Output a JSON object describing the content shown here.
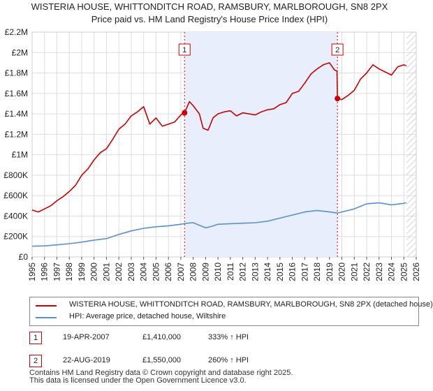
{
  "chart_data": {
    "type": "line",
    "title": "WISTERIA HOUSE, WHITTONDITCH ROAD, RAMSBURY, MARLBOROUGH, SN8 2PX",
    "subtitle": "Price paid vs. HM Land Registry's House Price Index (HPI)",
    "xlim": [
      1995,
      2026
    ],
    "ylim": [
      0,
      2200000
    ],
    "x_ticks": [
      "1995",
      "1996",
      "1997",
      "1998",
      "1999",
      "2000",
      "2001",
      "2002",
      "2003",
      "2004",
      "2005",
      "2006",
      "2007",
      "2008",
      "2009",
      "2010",
      "2011",
      "2012",
      "2013",
      "2014",
      "2015",
      "2016",
      "2017",
      "2018",
      "2019",
      "2020",
      "2021",
      "2022",
      "2023",
      "2024",
      "2025",
      "2026"
    ],
    "y_ticks": [
      {
        "value": 0,
        "label": "£0"
      },
      {
        "value": 200000,
        "label": "£200K"
      },
      {
        "value": 400000,
        "label": "£400K"
      },
      {
        "value": 600000,
        "label": "£600K"
      },
      {
        "value": 800000,
        "label": "£800K"
      },
      {
        "value": 1000000,
        "label": "£1M"
      },
      {
        "value": 1200000,
        "label": "£1.2M"
      },
      {
        "value": 1400000,
        "label": "£1.4M"
      },
      {
        "value": 1600000,
        "label": "£1.6M"
      },
      {
        "value": 1800000,
        "label": "£1.8M"
      },
      {
        "value": 2000000,
        "label": "£2M"
      },
      {
        "value": 2200000,
        "label": "£2.2M"
      }
    ],
    "grid": true,
    "shaded_period": [
      2007.3,
      2019.64
    ],
    "future_hatch_from": 2025.2,
    "series": [
      {
        "name": "WISTERIA HOUSE, WHITTONDITCH ROAD, RAMSBURY, MARLBOROUGH, SN8 2PX (detached house)",
        "color": "#cc0000",
        "x": [
          1995.0,
          1995.5,
          1996.0,
          1996.5,
          1997.0,
          1997.5,
          1998.0,
          1998.5,
          1999.0,
          1999.5,
          2000.0,
          2000.5,
          2001.0,
          2001.5,
          2002.0,
          2002.5,
          2003.0,
          2003.5,
          2004.0,
          2004.5,
          2005.0,
          2005.5,
          2006.0,
          2006.5,
          2007.0,
          2007.3,
          2007.7,
          2008.0,
          2008.5,
          2008.8,
          2009.2,
          2009.6,
          2010.0,
          2010.5,
          2011.0,
          2011.5,
          2012.0,
          2012.5,
          2013.0,
          2013.5,
          2014.0,
          2014.5,
          2015.0,
          2015.5,
          2016.0,
          2016.5,
          2017.0,
          2017.5,
          2018.0,
          2018.5,
          2019.0,
          2019.4,
          2019.6,
          2019.64,
          2020.0,
          2020.5,
          2021.0,
          2021.5,
          2022.0,
          2022.5,
          2023.0,
          2023.5,
          2024.0,
          2024.5,
          2025.0,
          2025.2
        ],
        "values": [
          460000,
          440000,
          470000,
          500000,
          550000,
          590000,
          640000,
          700000,
          800000,
          860000,
          950000,
          1020000,
          1060000,
          1150000,
          1250000,
          1300000,
          1380000,
          1420000,
          1470000,
          1300000,
          1360000,
          1280000,
          1300000,
          1320000,
          1390000,
          1410000,
          1520000,
          1480000,
          1400000,
          1260000,
          1240000,
          1360000,
          1400000,
          1420000,
          1430000,
          1380000,
          1410000,
          1400000,
          1390000,
          1420000,
          1440000,
          1450000,
          1490000,
          1510000,
          1600000,
          1620000,
          1700000,
          1790000,
          1840000,
          1880000,
          1900000,
          1830000,
          1820000,
          1550000,
          1540000,
          1580000,
          1630000,
          1740000,
          1800000,
          1880000,
          1840000,
          1810000,
          1780000,
          1860000,
          1880000,
          1870000
        ]
      },
      {
        "name": "HPI: Average price, detached house, Wiltshire",
        "color": "#5b8fd1",
        "x": [
          1995.0,
          1996.0,
          1997.0,
          1998.0,
          1999.0,
          2000.0,
          2001.0,
          2002.0,
          2003.0,
          2004.0,
          2005.0,
          2006.0,
          2007.0,
          2007.5,
          2008.0,
          2008.5,
          2009.0,
          2009.5,
          2010.0,
          2011.0,
          2012.0,
          2013.0,
          2014.0,
          2015.0,
          2016.0,
          2017.0,
          2018.0,
          2019.0,
          2019.64,
          2020.0,
          2021.0,
          2022.0,
          2023.0,
          2024.0,
          2025.0,
          2025.2
        ],
        "values": [
          105000,
          108000,
          118000,
          130000,
          145000,
          165000,
          180000,
          220000,
          255000,
          280000,
          295000,
          305000,
          320000,
          330000,
          335000,
          310000,
          285000,
          300000,
          320000,
          325000,
          330000,
          335000,
          350000,
          380000,
          410000,
          440000,
          455000,
          440000,
          430000,
          440000,
          470000,
          520000,
          530000,
          510000,
          525000,
          530000
        ]
      }
    ],
    "sale_markers": [
      {
        "label": "1",
        "x": 2007.3,
        "value": 1410000
      },
      {
        "label": "2",
        "x": 2019.64,
        "value": 1550000
      }
    ]
  },
  "legend": {
    "property_label": "WISTERIA HOUSE, WHITTONDITCH ROAD, RAMSBURY, MARLBOROUGH, SN8 2PX (detached house)",
    "hpi_label": "HPI: Average price, detached house, Wiltshire",
    "property_color": "#cc0000",
    "hpi_color": "#5b8fd1"
  },
  "sales": [
    {
      "num": "1",
      "date": "19-APR-2007",
      "price": "£1,410,000",
      "hpi": "333% ↑ HPI"
    },
    {
      "num": "2",
      "date": "22-AUG-2019",
      "price": "£1,550,000",
      "hpi": "260% ↑ HPI"
    }
  ],
  "footer": {
    "line1": "Contains HM Land Registry data © Crown copyright and database right 2025.",
    "line2": "This data is licensed under the Open Government Licence v3.0."
  }
}
